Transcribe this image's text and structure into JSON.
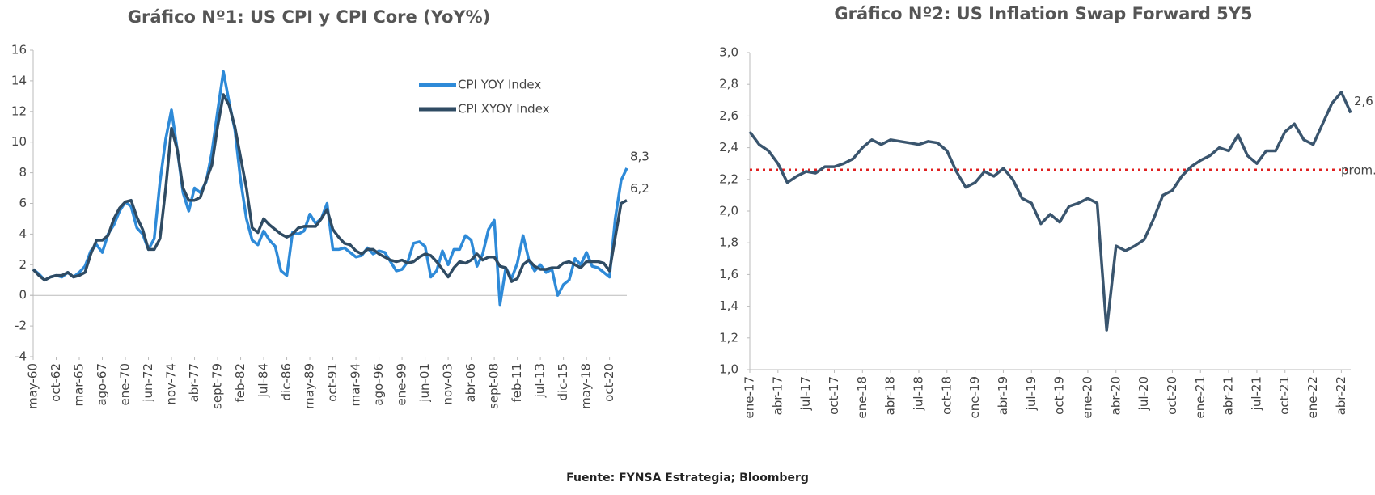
{
  "chart_data": [
    {
      "type": "line",
      "title": "Gráfico Nº1: US CPI y CPI Core (YoY%)",
      "categories": [
        "may-60",
        null,
        null,
        null,
        "oct-62",
        null,
        null,
        null,
        "mar-65",
        null,
        null,
        null,
        "ago-67",
        null,
        null,
        null,
        "ene-70",
        null,
        null,
        null,
        "jun-72",
        null,
        null,
        null,
        "nov-74",
        null,
        null,
        null,
        "abr-77",
        null,
        null,
        null,
        "sept-79",
        null,
        null,
        null,
        "feb-82",
        null,
        null,
        null,
        "jul-84",
        null,
        null,
        null,
        "dic-86",
        null,
        null,
        null,
        "may-89",
        null,
        null,
        null,
        "oct-91",
        null,
        null,
        null,
        "mar-94",
        null,
        null,
        null,
        "ago-96",
        null,
        null,
        null,
        "ene-99",
        null,
        null,
        null,
        "jun-01",
        null,
        null,
        null,
        "nov-03",
        null,
        null,
        null,
        "abr-06",
        null,
        null,
        null,
        "sept-08",
        null,
        null,
        null,
        "feb-11",
        null,
        null,
        null,
        "jul-13",
        null,
        null,
        null,
        "dic-15",
        null,
        null,
        null,
        "may-18",
        null,
        null,
        null,
        "oct-20",
        null,
        null,
        null
      ],
      "series": [
        {
          "name": "CPI YOY Index",
          "color": "#2e8ad8",
          "values": [
            1.7,
            1.4,
            1.0,
            1.2,
            1.3,
            1.2,
            1.5,
            1.2,
            1.5,
            1.9,
            2.9,
            3.3,
            2.8,
            4.0,
            4.6,
            5.5,
            6.1,
            5.8,
            4.4,
            4.0,
            3.0,
            3.7,
            7.4,
            10.2,
            12.1,
            9.5,
            6.7,
            5.5,
            7.0,
            6.7,
            7.4,
            9.3,
            12.0,
            14.6,
            12.6,
            10.8,
            7.5,
            5.0,
            3.6,
            3.3,
            4.2,
            3.6,
            3.2,
            1.6,
            1.3,
            4.1,
            4.0,
            4.2,
            5.3,
            4.7,
            5.0,
            6.0,
            3.0,
            3.0,
            3.1,
            2.8,
            2.5,
            2.6,
            3.1,
            2.7,
            2.9,
            2.8,
            2.2,
            1.6,
            1.7,
            2.2,
            3.4,
            3.5,
            3.2,
            1.2,
            1.6,
            2.9,
            2.0,
            3.0,
            3.0,
            3.9,
            3.6,
            1.9,
            2.7,
            4.3,
            4.9,
            -0.6,
            1.8,
            1.1,
            2.1,
            3.9,
            2.3,
            1.6,
            2.0,
            1.5,
            1.7,
            0.0,
            0.7,
            1.0,
            2.4,
            2.0,
            2.8,
            1.9,
            1.8,
            1.5,
            1.2,
            5.0,
            7.5,
            8.3
          ],
          "value_labels": [
            null,
            null,
            null,
            null,
            null,
            null,
            null,
            null,
            null,
            null,
            null,
            null,
            null,
            null,
            null,
            null,
            null,
            null,
            null,
            null,
            null,
            null,
            null,
            null,
            null,
            null,
            null,
            null,
            null,
            null,
            null,
            null,
            null,
            null,
            null,
            null,
            null,
            null,
            null,
            null,
            null,
            null,
            null,
            null,
            null,
            null,
            null,
            null,
            null,
            null,
            null,
            null,
            null,
            null,
            null,
            null,
            null,
            null,
            null,
            null,
            null,
            null,
            null,
            null,
            null,
            null,
            null,
            null,
            null,
            null,
            null,
            null,
            null,
            null,
            null,
            null,
            null,
            null,
            null,
            null,
            null,
            null,
            null,
            null,
            null,
            null,
            null,
            null,
            null,
            null,
            null,
            null,
            null,
            null,
            null,
            null,
            null,
            null,
            null,
            null,
            null,
            null,
            null,
            "8,3"
          ]
        },
        {
          "name": "CPI XYOY Index",
          "color": "#2f4b63",
          "values": [
            1.7,
            1.3,
            1.0,
            1.2,
            1.3,
            1.3,
            1.5,
            1.2,
            1.3,
            1.5,
            2.7,
            3.6,
            3.6,
            3.9,
            5.0,
            5.7,
            6.1,
            6.2,
            5.1,
            4.3,
            3.0,
            3.0,
            3.7,
            7.0,
            10.9,
            9.5,
            7.0,
            6.2,
            6.2,
            6.4,
            7.5,
            8.5,
            11.0,
            13.1,
            12.4,
            11.0,
            9.0,
            7.0,
            4.4,
            4.1,
            5.0,
            4.6,
            4.3,
            4.0,
            3.8,
            4.0,
            4.4,
            4.5,
            4.5,
            4.5,
            5.0,
            5.6,
            4.3,
            3.8,
            3.4,
            3.3,
            2.9,
            2.7,
            3.0,
            3.0,
            2.7,
            2.5,
            2.3,
            2.2,
            2.3,
            2.1,
            2.2,
            2.5,
            2.7,
            2.6,
            2.2,
            1.7,
            1.2,
            1.8,
            2.2,
            2.1,
            2.3,
            2.7,
            2.3,
            2.5,
            2.5,
            1.9,
            1.8,
            0.9,
            1.1,
            2.0,
            2.3,
            1.9,
            1.7,
            1.7,
            1.8,
            1.8,
            2.1,
            2.2,
            2.0,
            1.8,
            2.2,
            2.2,
            2.2,
            2.1,
            1.6,
            3.8,
            6.0,
            6.2
          ],
          "value_labels": [
            null,
            null,
            null,
            null,
            null,
            null,
            null,
            null,
            null,
            null,
            null,
            null,
            null,
            null,
            null,
            null,
            null,
            null,
            null,
            null,
            null,
            null,
            null,
            null,
            null,
            null,
            null,
            null,
            null,
            null,
            null,
            null,
            null,
            null,
            null,
            null,
            null,
            null,
            null,
            null,
            null,
            null,
            null,
            null,
            null,
            null,
            null,
            null,
            null,
            null,
            null,
            null,
            null,
            null,
            null,
            null,
            null,
            null,
            null,
            null,
            null,
            null,
            null,
            null,
            null,
            null,
            null,
            null,
            null,
            null,
            null,
            null,
            null,
            null,
            null,
            null,
            null,
            null,
            null,
            null,
            null,
            null,
            null,
            null,
            null,
            null,
            null,
            null,
            null,
            null,
            null,
            null,
            null,
            null,
            null,
            null,
            null,
            null,
            null,
            null,
            null,
            null,
            null,
            "6,2"
          ]
        }
      ],
      "ylim": [
        -4,
        16
      ],
      "yticks": [
        -4,
        -2,
        0,
        2,
        4,
        6,
        8,
        10,
        12,
        14,
        16
      ],
      "legend": "upper right"
    },
    {
      "type": "line",
      "title": "Gráfico Nº2: US Inflation Swap Forward 5Y5",
      "categories": [
        "ene-17",
        null,
        null,
        "abr-17",
        null,
        null,
        "jul-17",
        null,
        null,
        "oct-17",
        null,
        null,
        "ene-18",
        null,
        null,
        "abr-18",
        null,
        null,
        "jul-18",
        null,
        null,
        "oct-18",
        null,
        null,
        "ene-19",
        null,
        null,
        "abr-19",
        null,
        null,
        "jul-19",
        null,
        null,
        "oct-19",
        null,
        null,
        "ene-20",
        null,
        null,
        "abr-20",
        null,
        null,
        "jul-20",
        null,
        null,
        "oct-20",
        null,
        null,
        "ene-21",
        null,
        null,
        "abr-21",
        null,
        null,
        "jul-21",
        null,
        null,
        "oct-21",
        null,
        null,
        "ene-22",
        null,
        null,
        "abr-22",
        null
      ],
      "series": [
        {
          "name": "5Y5",
          "color": "#3a556e",
          "values": [
            2.5,
            2.42,
            2.38,
            2.3,
            2.18,
            2.22,
            2.25,
            2.24,
            2.28,
            2.28,
            2.3,
            2.33,
            2.4,
            2.45,
            2.42,
            2.45,
            2.44,
            2.43,
            2.42,
            2.44,
            2.43,
            2.38,
            2.25,
            2.15,
            2.18,
            2.25,
            2.22,
            2.27,
            2.2,
            2.08,
            2.05,
            1.92,
            1.98,
            1.93,
            2.03,
            2.05,
            2.08,
            2.05,
            1.25,
            1.78,
            1.75,
            1.78,
            1.82,
            1.95,
            2.1,
            2.13,
            2.22,
            2.28,
            2.32,
            2.35,
            2.4,
            2.38,
            2.48,
            2.35,
            2.3,
            2.38,
            2.38,
            2.5,
            2.55,
            2.45,
            2.42,
            2.55,
            2.68,
            2.75,
            2.62
          ],
          "value_labels": [
            null,
            null,
            null,
            null,
            null,
            null,
            null,
            null,
            null,
            null,
            null,
            null,
            null,
            null,
            null,
            null,
            null,
            null,
            null,
            null,
            null,
            null,
            null,
            null,
            null,
            null,
            null,
            null,
            null,
            null,
            null,
            null,
            null,
            null,
            null,
            null,
            null,
            null,
            null,
            null,
            null,
            null,
            null,
            null,
            null,
            null,
            null,
            null,
            null,
            null,
            null,
            null,
            null,
            null,
            null,
            null,
            null,
            null,
            null,
            null,
            null,
            null,
            null,
            null,
            "2,6"
          ]
        }
      ],
      "average": {
        "value": 2.26,
        "label": "prom.",
        "color": "#e02020"
      },
      "ylim": [
        1.0,
        3.0
      ],
      "yticks": [
        {
          "value": 1.0,
          "label": "1,0"
        },
        {
          "value": 1.2,
          "label": "1,2"
        },
        {
          "value": 1.4,
          "label": "1,4"
        },
        {
          "value": 1.6,
          "label": "1,6"
        },
        {
          "value": 1.8,
          "label": "1,8"
        },
        {
          "value": 2.0,
          "label": "2,0"
        },
        {
          "value": 2.2,
          "label": "2,2"
        },
        {
          "value": 2.4,
          "label": "2,4"
        },
        {
          "value": 2.6,
          "label": "2,6"
        },
        {
          "value": 2.8,
          "label": "2,8"
        },
        {
          "value": 3.0,
          "label": "3,0"
        }
      ]
    }
  ],
  "source": "Fuente: FYNSA Estrategia; Bloomberg"
}
